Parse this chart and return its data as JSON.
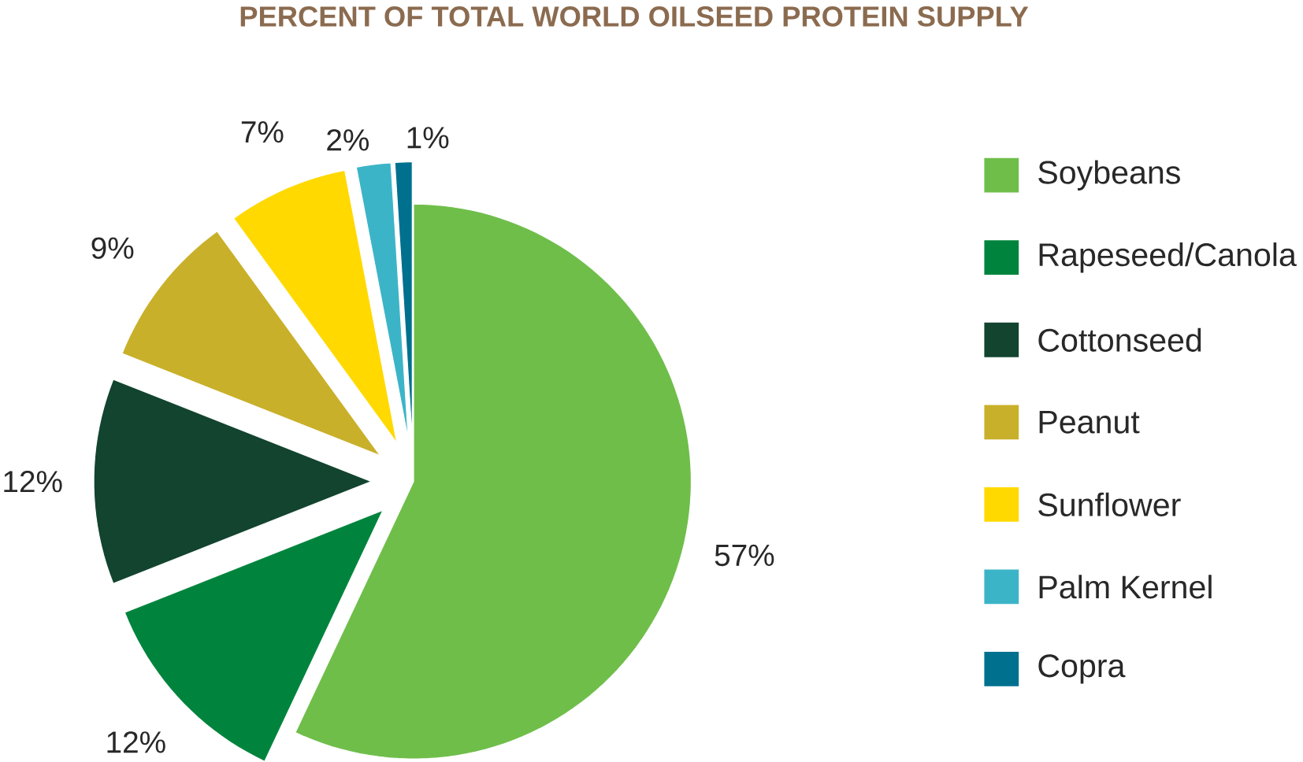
{
  "chart_data": {
    "type": "pie",
    "title": "PERCENT OF TOTAL WORLD OILSEED PROTEIN SUPPLY",
    "categories": [
      "Soybeans",
      "Rapeseed/Canola",
      "Cottonseed",
      "Peanut",
      "Sunflower",
      "Palm Kernel",
      "Copra"
    ],
    "values": [
      57,
      12,
      12,
      9,
      7,
      2,
      1
    ],
    "colors": [
      "#6fbe4a",
      "#00843d",
      "#12442f",
      "#c9b02a",
      "#ffd900",
      "#3cb4c8",
      "#00708f"
    ],
    "value_labels": [
      "57%",
      "12%",
      "12%",
      "9%",
      "7%",
      "2%",
      "1%"
    ],
    "legend": "right"
  }
}
